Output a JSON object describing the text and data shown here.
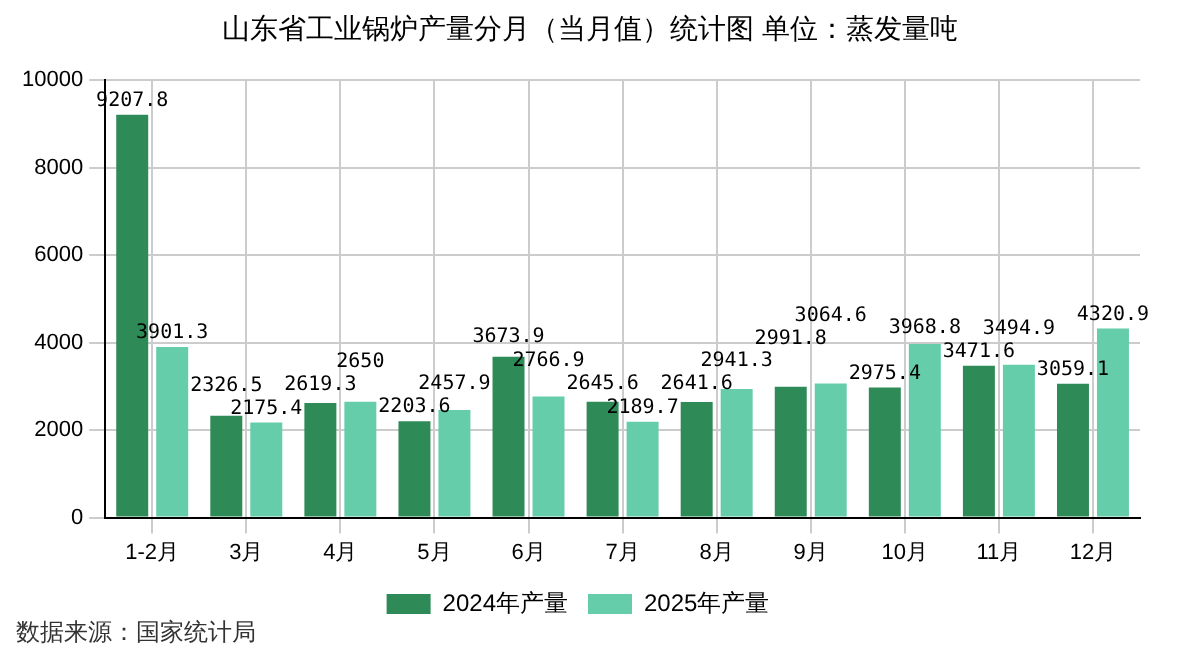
{
  "chart_data": {
    "type": "bar",
    "title": "山东省工业锅炉产量分月（当月值）统计图 单位：蒸发量吨",
    "categories": [
      "1-2月",
      "3月",
      "4月",
      "5月",
      "6月",
      "7月",
      "8月",
      "9月",
      "10月",
      "11月",
      "12月"
    ],
    "series": [
      {
        "name": "2024年产量",
        "color": "#2e8b57",
        "values": [
          9207.8,
          2326.5,
          2619.3,
          2203.6,
          3673.9,
          2645.6,
          2641.6,
          2991.8,
          2975.4,
          3471.6,
          3059.1
        ]
      },
      {
        "name": "2025年产量",
        "color": "#66cdaa",
        "values": [
          3901.3,
          2175.4,
          2650,
          2457.9,
          2766.9,
          2189.7,
          2941.3,
          3064.6,
          3968.8,
          3494.9,
          4320.9
        ]
      }
    ],
    "ylim": [
      0,
      10000
    ],
    "yticks": [
      0,
      2000,
      4000,
      6000,
      8000,
      10000
    ],
    "grid": true,
    "legend": "bottom",
    "data_labels": true,
    "annotations": [
      "数据来源：国家统计局"
    ]
  }
}
